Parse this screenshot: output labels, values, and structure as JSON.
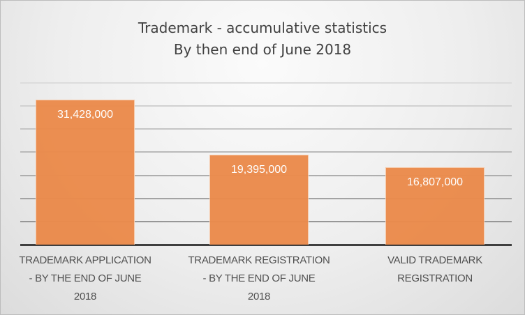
{
  "chart_data": {
    "type": "bar",
    "title": "Trademark  - accumulative statistics\nBy then end of June 2018",
    "title_lines": [
      "Trademark  - accumulative statistics",
      "By then end of June 2018"
    ],
    "categories": [
      "TRADEMARK APPLICATION\n- BY THE END OF JUNE\n2018",
      "TRADEMARK REGISTRATION\n- BY THE END OF JUNE\n2018",
      "VALID TRADEMARK\nREGISTRATION"
    ],
    "values": [
      31428000,
      19395000,
      16807000
    ],
    "value_labels": [
      "31,428,000",
      "19,395,000",
      "16,807,000"
    ],
    "xlabel": "",
    "ylabel": "",
    "ylim": [
      0,
      35000000
    ],
    "gridline_step": 5000000,
    "grid": true,
    "y_axis_visible": false,
    "legend": "none",
    "bar_color": "#eb8b4c"
  }
}
